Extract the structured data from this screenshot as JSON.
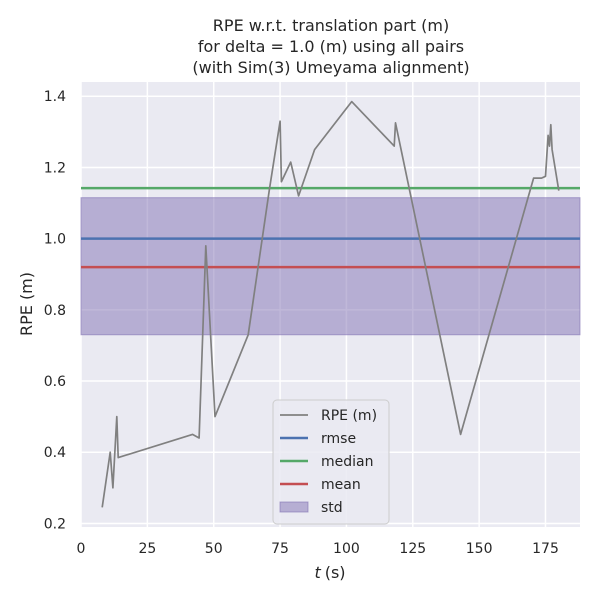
{
  "chart_data": {
    "type": "line",
    "title_lines": [
      "RPE w.r.t. translation part (m)",
      "for delta = 1.0 (m) using all pairs",
      "(with Sim(3) Umeyama alignment)"
    ],
    "xlabel": "(s)",
    "xlabel_italic": "t",
    "ylabel": "RPE (m)",
    "xlim": [
      0,
      188
    ],
    "ylim": [
      0.19,
      1.44
    ],
    "xticks": [
      0,
      25,
      50,
      75,
      100,
      125,
      150,
      175
    ],
    "xtick_labels": [
      "0",
      "25",
      "50",
      "75",
      "100",
      "125",
      "150",
      "175"
    ],
    "yticks": [
      0.2,
      0.4,
      0.6,
      0.8,
      1.0,
      1.2,
      1.4
    ],
    "ytick_labels": [
      "0.2",
      "0.4",
      "0.6",
      "0.8",
      "1.0",
      "1.2",
      "1.4"
    ],
    "grid": true,
    "background": "#eaeaf2",
    "series": [
      {
        "name": "RPE (m)",
        "color": "#808080",
        "x": [
          8,
          11,
          12,
          13.5,
          14,
          42,
          44.5,
          47,
          50.5,
          63,
          71,
          75,
          75.5,
          79,
          82,
          88,
          102,
          118,
          118.5,
          143,
          170.5,
          173.5,
          175,
          176,
          176.5,
          177,
          177.5,
          180
        ],
        "y": [
          0.245,
          0.4,
          0.3,
          0.5,
          0.385,
          0.45,
          0.44,
          0.98,
          0.5,
          0.73,
          1.14,
          1.33,
          1.16,
          1.215,
          1.12,
          1.25,
          1.385,
          1.26,
          1.325,
          0.45,
          1.17,
          1.17,
          1.175,
          1.29,
          1.26,
          1.32,
          1.25,
          1.135
        ]
      }
    ],
    "hlines": [
      {
        "name": "rmse",
        "color": "#4c72b0",
        "y": 1.0
      },
      {
        "name": "median",
        "color": "#55a868",
        "y": 1.142
      },
      {
        "name": "mean",
        "color": "#c44e52",
        "y": 0.92
      }
    ],
    "band": {
      "name": "std",
      "color": "#8172b3",
      "y0": 0.73,
      "y1": 1.115
    },
    "legend": {
      "placement": "lower-center",
      "entries": [
        "RPE (m)",
        "rmse",
        "median",
        "mean",
        "std"
      ]
    }
  }
}
